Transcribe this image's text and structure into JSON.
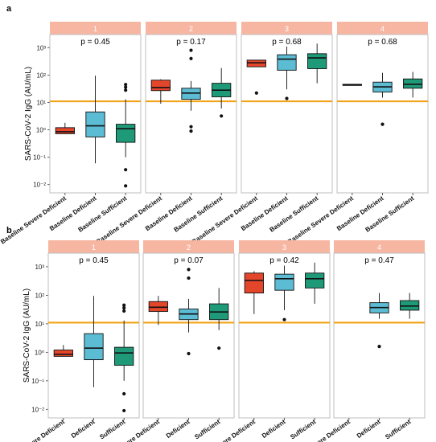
{
  "chart_data": [
    {
      "panel_label": "a",
      "type": "box",
      "ylabel": "SARS-CoV-2 IgG (AU/mL)",
      "yscale": "log",
      "ylim": [
        0.005,
        3000
      ],
      "yticks": [
        {
          "value": 0.01,
          "label": "10⁻²"
        },
        {
          "value": 0.1,
          "label": "10⁻¹"
        },
        {
          "value": 1,
          "label": "10⁰"
        },
        {
          "value": 10,
          "label": "10¹"
        },
        {
          "value": 100,
          "label": "10²"
        },
        {
          "value": 1000,
          "label": "10³"
        }
      ],
      "threshold": 11,
      "facets": [
        {
          "strip": "1",
          "p_value": "p = 0.45",
          "categories": [
            "Baseline Severe Deficient",
            "Baseline Deficient",
            "Baseline Sufficient"
          ],
          "boxes": [
            {
              "min": 0.7,
              "q1": 0.72,
              "median": 0.85,
              "q3": 1.2,
              "max": 1.8,
              "outliers": []
            },
            {
              "min": 0.06,
              "q1": 0.55,
              "median": 1.4,
              "q3": 4.5,
              "max": 95,
              "outliers": []
            },
            {
              "min": 0.1,
              "q1": 0.35,
              "median": 1.1,
              "q3": 1.6,
              "max": 13,
              "outliers": [
                28,
                36,
                45,
                0.035,
                0.009
              ]
            }
          ]
        },
        {
          "strip": "2",
          "p_value": "p = 0.17",
          "categories": [
            "Baseline Severe Deficient",
            "Baseline Deficient",
            "Baseline Sufficient"
          ],
          "boxes": [
            {
              "min": 9,
              "q1": 27,
              "median": 35,
              "q3": 65,
              "max": 70,
              "outliers": []
            },
            {
              "min": 5,
              "q1": 13,
              "median": 22,
              "q3": 33,
              "max": 60,
              "outliers": [
                1.3,
                0.9,
                400,
                800
              ]
            },
            {
              "min": 6,
              "q1": 16,
              "median": 28,
              "q3": 50,
              "max": 180,
              "outliers": [
                3.2
              ]
            }
          ]
        },
        {
          "strip": "3",
          "p_value": "p = 0.68",
          "categories": [
            "Baseline Severe Deficient",
            "Baseline Deficient",
            "Baseline Sufficient"
          ],
          "boxes": [
            {
              "min": 200,
              "q1": 200,
              "median": 280,
              "q3": 350,
              "max": 350,
              "outliers": [
                22
              ]
            },
            {
              "min": 30,
              "q1": 150,
              "median": 380,
              "q3": 550,
              "max": 1100,
              "outliers": [
                14
              ]
            },
            {
              "min": 50,
              "q1": 170,
              "median": 420,
              "q3": 600,
              "max": 1400,
              "outliers": []
            }
          ]
        },
        {
          "strip": "4",
          "p_value": "p = 0.68",
          "categories": [
            "Baseline Severe Deficient",
            "Baseline Deficient",
            "Baseline Sufficient"
          ],
          "boxes": [
            {
              "min": 42,
              "q1": 42,
              "median": 44,
              "q3": 46,
              "max": 46,
              "outliers": []
            },
            {
              "min": 15,
              "q1": 24,
              "median": 37,
              "q3": 55,
              "max": 120,
              "outliers": [
                1.6
              ]
            },
            {
              "min": 15,
              "q1": 33,
              "median": 46,
              "q3": 72,
              "max": 130,
              "outliers": []
            }
          ]
        }
      ]
    },
    {
      "panel_label": "b",
      "type": "box",
      "ylabel": "SARS-CoV-2 IgG (AU/mL)",
      "yscale": "log",
      "ylim": [
        0.005,
        3000
      ],
      "yticks": [
        {
          "value": 0.01,
          "label": "10⁻²"
        },
        {
          "value": 0.1,
          "label": "10⁻¹"
        },
        {
          "value": 1,
          "label": "10⁰"
        },
        {
          "value": 10,
          "label": "10¹"
        },
        {
          "value": 100,
          "label": "10²"
        },
        {
          "value": 1000,
          "label": "10³"
        }
      ],
      "threshold": 11,
      "facets": [
        {
          "strip": "1",
          "p_value": "p = 0.45",
          "categories": [
            "Severe Deficient",
            "Deficient",
            "Sufficient"
          ],
          "boxes": [
            {
              "min": 0.7,
              "q1": 0.72,
              "median": 0.85,
              "q3": 1.2,
              "max": 1.8,
              "outliers": []
            },
            {
              "min": 0.06,
              "q1": 0.55,
              "median": 1.4,
              "q3": 4.5,
              "max": 95,
              "outliers": []
            },
            {
              "min": 0.1,
              "q1": 0.35,
              "median": 0.95,
              "q3": 1.5,
              "max": 13,
              "outliers": [
                28,
                36,
                45,
                0.035,
                0.009
              ]
            }
          ]
        },
        {
          "strip": "2",
          "p_value": "p = 0.07",
          "categories": [
            "Severe Deficient",
            "Deficient",
            "Sufficient"
          ],
          "boxes": [
            {
              "min": 9,
              "q1": 27,
              "median": 38,
              "q3": 60,
              "max": 95,
              "outliers": []
            },
            {
              "min": 5,
              "q1": 14,
              "median": 22,
              "q3": 33,
              "max": 75,
              "outliers": [
                0.9,
                400,
                800
              ]
            },
            {
              "min": 6,
              "q1": 14,
              "median": 26,
              "q3": 50,
              "max": 180,
              "outliers": [
                1.4
              ]
            }
          ]
        },
        {
          "strip": "3",
          "p_value": "p = 0.42",
          "categories": [
            "Severe Deficient",
            "Deficient",
            "Sufficient"
          ],
          "boxes": [
            {
              "min": 22,
              "q1": 120,
              "median": 330,
              "q3": 600,
              "max": 700,
              "outliers": []
            },
            {
              "min": 30,
              "q1": 150,
              "median": 380,
              "q3": 550,
              "max": 1100,
              "outliers": [
                14
              ]
            },
            {
              "min": 50,
              "q1": 180,
              "median": 380,
              "q3": 600,
              "max": 1400,
              "outliers": []
            }
          ]
        },
        {
          "strip": "4",
          "p_value": "p = 0.47",
          "categories": [
            "Severe Deficient",
            "Deficient",
            "Sufficient"
          ],
          "boxes": [
            null,
            {
              "min": 15,
              "q1": 24,
              "median": 37,
              "q3": 55,
              "max": 120,
              "outliers": [
                1.6
              ]
            },
            {
              "min": 15,
              "q1": 30,
              "median": 42,
              "q3": 65,
              "max": 120,
              "outliers": []
            }
          ]
        }
      ]
    }
  ],
  "colors": {
    "box_fills": [
      "#e4462c",
      "#5bbcd3",
      "#1e9a78"
    ],
    "strip_bg": "#f7b6a2",
    "threshold_line": "#f2a418",
    "panel_border": "#bfbfbf"
  }
}
